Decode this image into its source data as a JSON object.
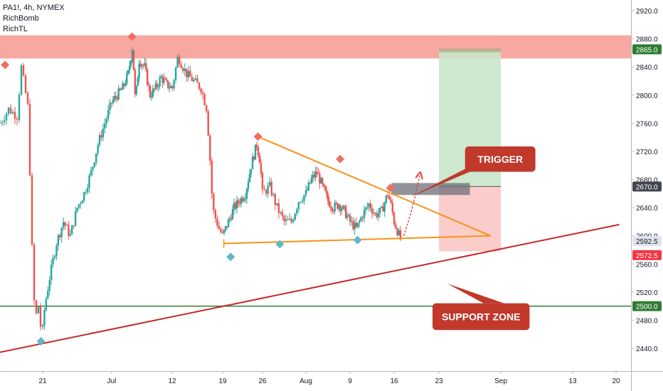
{
  "chart_data": {
    "type": "candlestick",
    "symbol_line": "PA1!, 4h, NYMEX",
    "indicators": [
      "RichBomb",
      "RichTL"
    ],
    "y_range": [
      2415,
      2935
    ],
    "y_ticks": [
      "2920.0",
      "2880.0",
      "2840.0",
      "2800.0",
      "2760.0",
      "2720.0",
      "2680.0",
      "2640.0",
      "2600.0",
      "2560.0",
      "2520.0",
      "2480.0",
      "2440.0"
    ],
    "x_ticks": [
      {
        "label": "21",
        "day": 21
      },
      {
        "label": "Jul",
        "day": 31
      },
      {
        "label": "12",
        "day": 42
      },
      {
        "label": "19",
        "day": 49
      },
      {
        "label": "26",
        "day": 56
      },
      {
        "label": "Aug",
        "day": 62
      },
      {
        "label": "9",
        "day": 70
      },
      {
        "label": "16",
        "day": 77
      },
      {
        "label": "23",
        "day": 84
      },
      {
        "label": "Sep",
        "day": 93
      },
      {
        "label": "13",
        "day": 104
      },
      {
        "label": "20",
        "day": 111
      }
    ],
    "price_path": [
      [
        16,
        2760
      ],
      [
        17,
        2780
      ],
      [
        18,
        2770
      ],
      [
        18.5,
        2840
      ],
      [
        19.3,
        2780
      ],
      [
        19.8,
        2560
      ],
      [
        20.1,
        2480
      ],
      [
        20.5,
        2500
      ],
      [
        20.9,
        2455
      ],
      [
        21.3,
        2500
      ],
      [
        22,
        2540
      ],
      [
        23,
        2590
      ],
      [
        24,
        2620
      ],
      [
        25,
        2600
      ],
      [
        26,
        2640
      ],
      [
        27,
        2660
      ],
      [
        28,
        2690
      ],
      [
        29,
        2730
      ],
      [
        30,
        2760
      ],
      [
        31,
        2790
      ],
      [
        32,
        2800
      ],
      [
        33,
        2810
      ],
      [
        34,
        2830
      ],
      [
        34.8,
        2870
      ],
      [
        35.3,
        2790
      ],
      [
        36,
        2850
      ],
      [
        37,
        2840
      ],
      [
        38,
        2800
      ],
      [
        39,
        2810
      ],
      [
        40,
        2825
      ],
      [
        41,
        2815
      ],
      [
        42,
        2810
      ],
      [
        42.8,
        2855
      ],
      [
        43.5,
        2840
      ],
      [
        44,
        2830
      ],
      [
        45,
        2820
      ],
      [
        46,
        2810
      ],
      [
        46.8,
        2780
      ],
      [
        47.3,
        2700
      ],
      [
        47.6,
        2640
      ],
      [
        48,
        2625
      ],
      [
        48.5,
        2610
      ],
      [
        49,
        2600
      ],
      [
        50,
        2620
      ],
      [
        51,
        2640
      ],
      [
        52,
        2650
      ],
      [
        53,
        2660
      ],
      [
        54,
        2700
      ],
      [
        55,
        2730
      ],
      [
        55.6,
        2705
      ],
      [
        56,
        2660
      ],
      [
        57,
        2670
      ],
      [
        58,
        2640
      ],
      [
        59,
        2620
      ],
      [
        60,
        2620
      ],
      [
        61,
        2650
      ],
      [
        62,
        2660
      ],
      [
        63,
        2680
      ],
      [
        64,
        2690
      ],
      [
        65,
        2670
      ],
      [
        66,
        2650
      ],
      [
        67,
        2640
      ],
      [
        68,
        2645
      ],
      [
        69,
        2635
      ],
      [
        70,
        2620
      ],
      [
        71,
        2610
      ],
      [
        72,
        2630
      ],
      [
        73,
        2645
      ],
      [
        74,
        2630
      ],
      [
        75,
        2635
      ],
      [
        76,
        2660
      ],
      [
        76.6,
        2640
      ],
      [
        77,
        2620
      ],
      [
        77.6,
        2605
      ],
      [
        78.1,
        2592.5
      ]
    ],
    "resistance_zone": {
      "low": 2852,
      "high": 2885,
      "color": "#f7a39b"
    },
    "support_line": {
      "price": 2500,
      "color": "#2e7d32",
      "label": "2500.0"
    },
    "long_term_trendline": {
      "points": [
        [
          15.8,
          2434
        ],
        [
          111.5,
          2616
        ]
      ],
      "color": "#c62828"
    },
    "triangle": {
      "upper": [
        [
          55.2,
          2741
        ],
        [
          91.5,
          2600
        ]
      ],
      "lower": [
        [
          49.2,
          2589
        ],
        [
          91.5,
          2600
        ]
      ],
      "color": "#f7931a"
    },
    "trade_box": {
      "x_start": 84,
      "x_end": 93,
      "entry": 2670,
      "target": 2865,
      "stop": 2578,
      "profit_color": "#c8e6c9",
      "loss_color": "#f9c6c4"
    },
    "gray_box": {
      "x_start": 76.6,
      "x_end": 88.5,
      "low": 2658,
      "high": 2675
    },
    "price_labels": [
      {
        "text": "2865.0",
        "price": 2865,
        "bg": "#2e7d32",
        "fg": "#ffffff"
      },
      {
        "text": "2670.0",
        "price": 2670,
        "bg": "#434651",
        "fg": "#ffffff"
      },
      {
        "text": "2592.5",
        "price": 2592.5,
        "bg": "#e0e3eb",
        "fg": "#131722"
      },
      {
        "text": "2572.5",
        "price": 2572.5,
        "bg": "#f23645",
        "fg": "#ffffff"
      },
      {
        "text": "2500.0",
        "price": 2500,
        "bg": "#2e7d32",
        "fg": "#ffffff"
      }
    ],
    "markers": [
      {
        "kind": "high",
        "day": 16.6,
        "price": 2843
      },
      {
        "kind": "high",
        "day": 34.7,
        "price": 2883
      },
      {
        "kind": "high",
        "day": 55.2,
        "price": 2741
      },
      {
        "kind": "high",
        "day": 68.2,
        "price": 2709
      },
      {
        "kind": "high",
        "day": 76.4,
        "price": 2668
      },
      {
        "kind": "low",
        "day": 20.8,
        "price": 2450
      },
      {
        "kind": "low",
        "day": 50.4,
        "price": 2570
      },
      {
        "kind": "low",
        "day": 58.4,
        "price": 2588
      },
      {
        "kind": "low",
        "day": 71.2,
        "price": 2594
      }
    ],
    "annotations": [
      {
        "text": "TRIGGER",
        "bg": "#c0392b",
        "box_day": [
          87.8,
          98.3
        ],
        "box_price": [
          2691,
          2727
        ],
        "pointer": [
          [
            88.8,
            2700
          ],
          [
            79.5,
            2655
          ],
          [
            88.5,
            2691
          ]
        ]
      },
      {
        "text": "SUPPORT ZONE",
        "bg": "#c0392b",
        "box_day": [
          83,
          97.4
        ],
        "box_price": [
          2466,
          2504
        ],
        "pointer": [
          [
            90.5,
            2504
          ],
          [
            85.2,
            2532
          ],
          [
            93.5,
            2504
          ]
        ]
      }
    ],
    "projection_arrow": {
      "from": [
        78.5,
        2600
      ],
      "to": [
        81,
        2686
      ]
    }
  }
}
